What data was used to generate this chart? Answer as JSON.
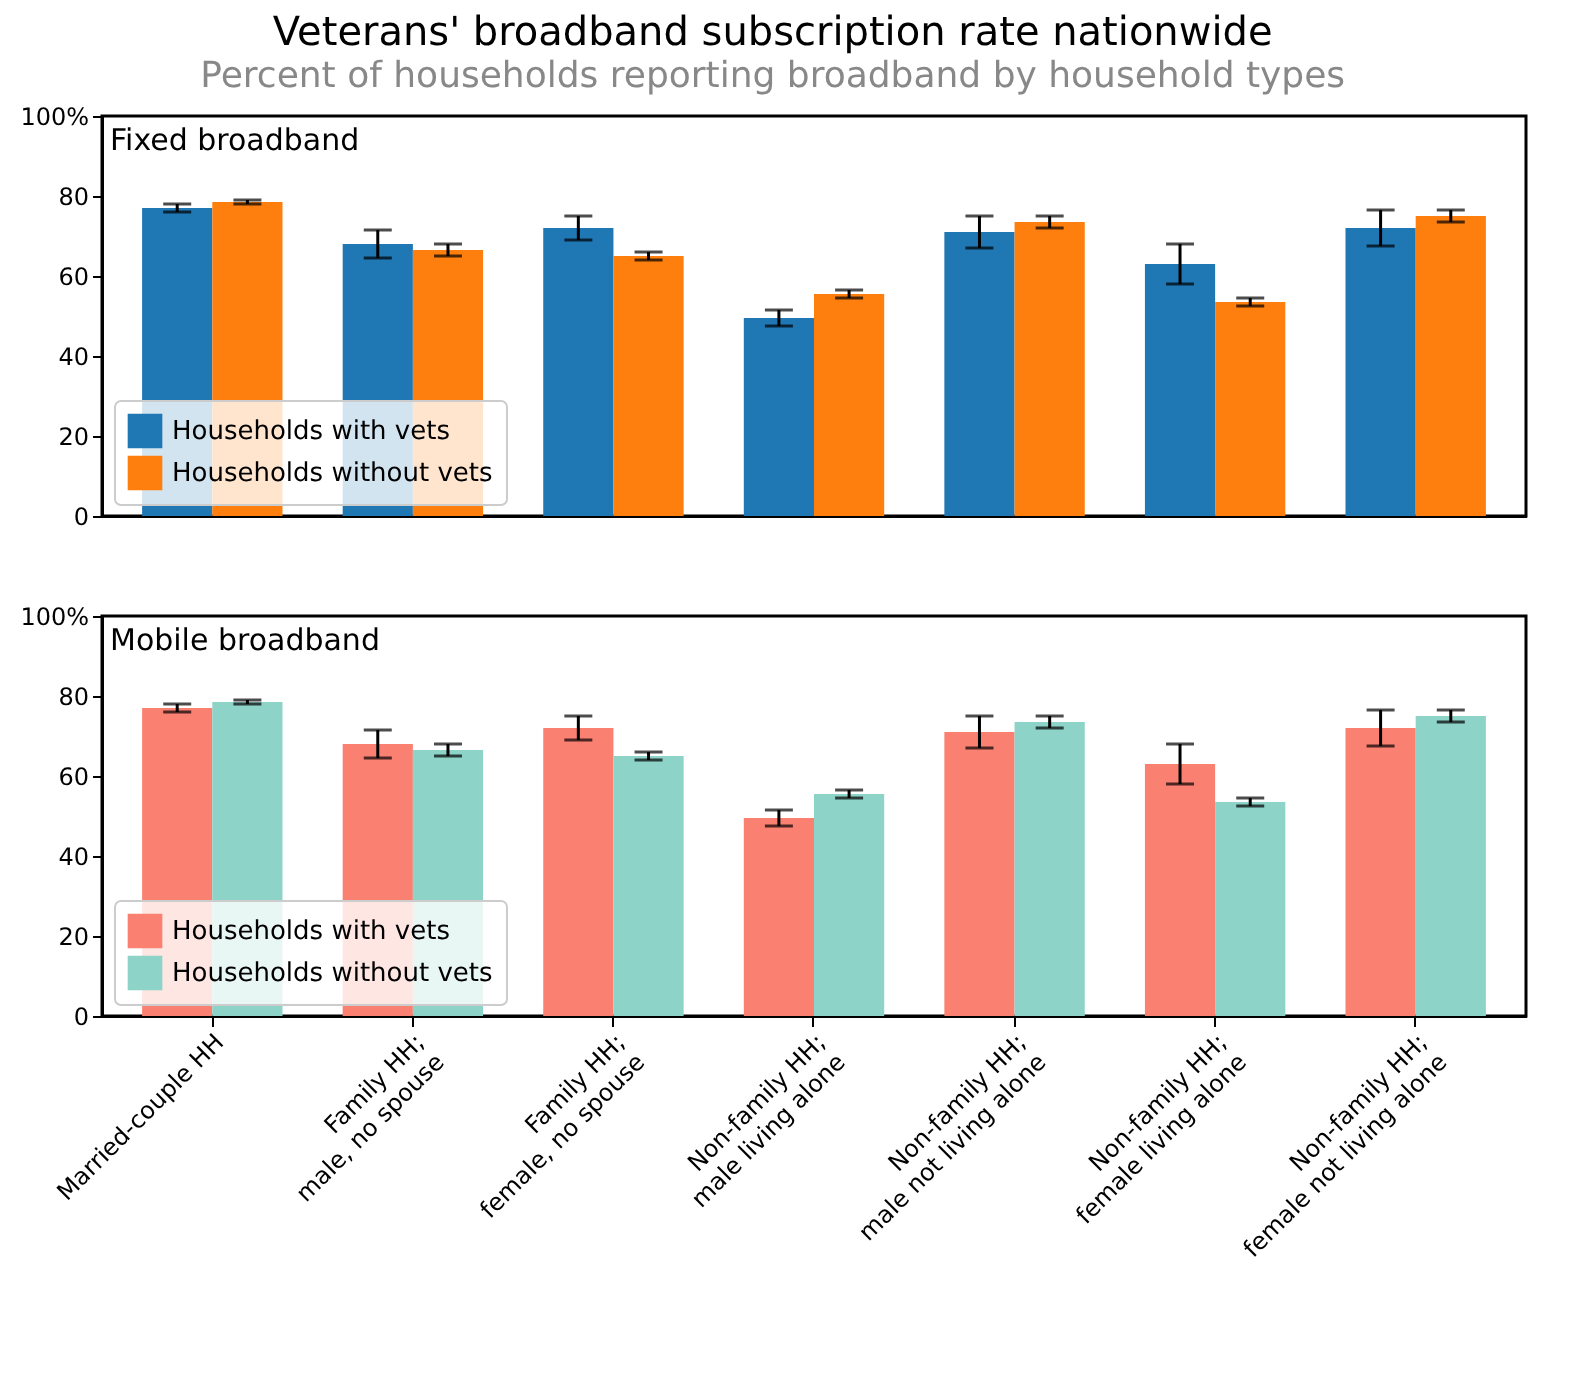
{
  "chart_data": [
    {
      "type": "bar",
      "title": "Veterans' broadband subscription rate nationwide",
      "subtitle": "Percent of households reporting broadband by household types",
      "annotations": [
        "Fixed broadband"
      ],
      "categories": [
        null,
        null,
        null,
        null,
        null,
        null,
        null
      ],
      "series": [
        {
          "name": "Households with vets",
          "color": "#1f77b4",
          "values": [
            77,
            68,
            72,
            49.5,
            71,
            63,
            72
          ],
          "errors": [
            1,
            3.5,
            3,
            2,
            4,
            5,
            4.5
          ]
        },
        {
          "name": "Households without vets",
          "color": "#ff7f0e",
          "values": [
            78.5,
            66.5,
            65,
            55.5,
            73.5,
            53.5,
            75
          ],
          "errors": [
            0.5,
            1.5,
            1,
            1,
            1.5,
            1,
            1.5
          ]
        }
      ],
      "ylim": [
        0,
        100
      ],
      "yticks": [
        0,
        20,
        40,
        60,
        80,
        {
          "value": 100,
          "label": "100%"
        }
      ],
      "legend": "bottom left",
      "grid": false,
      "tick_labels": "y"
    },
    {
      "type": "bar",
      "annotations": [
        "Mobile broadband"
      ],
      "categories": [
        "Married-couple HH",
        "Family HH;\nmale, no spouse",
        "Family HH;\nfemale, no spouse",
        "Non-family HH;\nmale living alone",
        "Non-family HH;\nmale not living alone",
        "Non-family HH;\nfemale living alone",
        "Non-family HH;\nfemale not living alone"
      ],
      "series": [
        {
          "name": "Households with vets",
          "color": "#fa8072",
          "values": [
            77,
            68,
            72,
            49.5,
            71,
            63,
            72
          ],
          "errors": [
            1,
            3.5,
            3,
            2,
            4,
            5,
            4.5
          ]
        },
        {
          "name": "Households without vets",
          "color": "#8dd3c7",
          "values": [
            78.5,
            66.5,
            65,
            55.5,
            73.5,
            53.5,
            75
          ],
          "errors": [
            0.5,
            1.5,
            1,
            1,
            1.5,
            1,
            1.5
          ]
        }
      ],
      "ylim": [
        0,
        100
      ],
      "yticks": [
        0,
        20,
        40,
        60,
        80,
        {
          "value": 100,
          "label": "100%"
        }
      ],
      "legend": "bottom left",
      "grid": false
    }
  ]
}
